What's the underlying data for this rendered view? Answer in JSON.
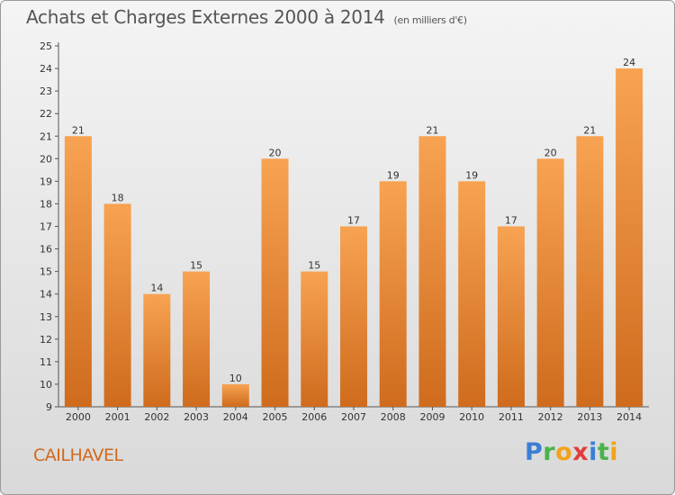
{
  "header": {
    "title": "Achats et Charges Externes 2000 à 2014",
    "unit": "(en milliers d'€)"
  },
  "footer": {
    "city": "CAILHAVEL",
    "logo_letters": [
      "P",
      "r",
      "o",
      "x",
      "i",
      "t",
      "i"
    ],
    "logo_colors": [
      "#3a7fd5",
      "#4bb24b",
      "#f2a21b",
      "#e23c3c",
      "#3a7fd5",
      "#4bb24b",
      "#f2a21b"
    ]
  },
  "colors": {
    "bar_light": "#f7a352",
    "bar_dark": "#cf6b1d",
    "city": "#d2691e"
  },
  "chart_data": {
    "type": "bar",
    "title": "Achats et Charges Externes 2000 à 2014",
    "subtitle": "(en milliers d'€)",
    "xlabel": "",
    "ylabel": "",
    "categories": [
      "2000",
      "2001",
      "2002",
      "2003",
      "2004",
      "2005",
      "2006",
      "2007",
      "2008",
      "2009",
      "2010",
      "2011",
      "2012",
      "2013",
      "2014"
    ],
    "values": [
      21,
      18,
      14,
      15,
      10,
      20,
      15,
      17,
      19,
      21,
      19,
      17,
      20,
      21,
      24
    ],
    "ylim": [
      9,
      25
    ],
    "yticks": [
      9,
      10,
      11,
      12,
      13,
      14,
      15,
      16,
      17,
      18,
      19,
      20,
      21,
      22,
      23,
      24,
      25
    ],
    "grid": false,
    "legend": "none"
  }
}
